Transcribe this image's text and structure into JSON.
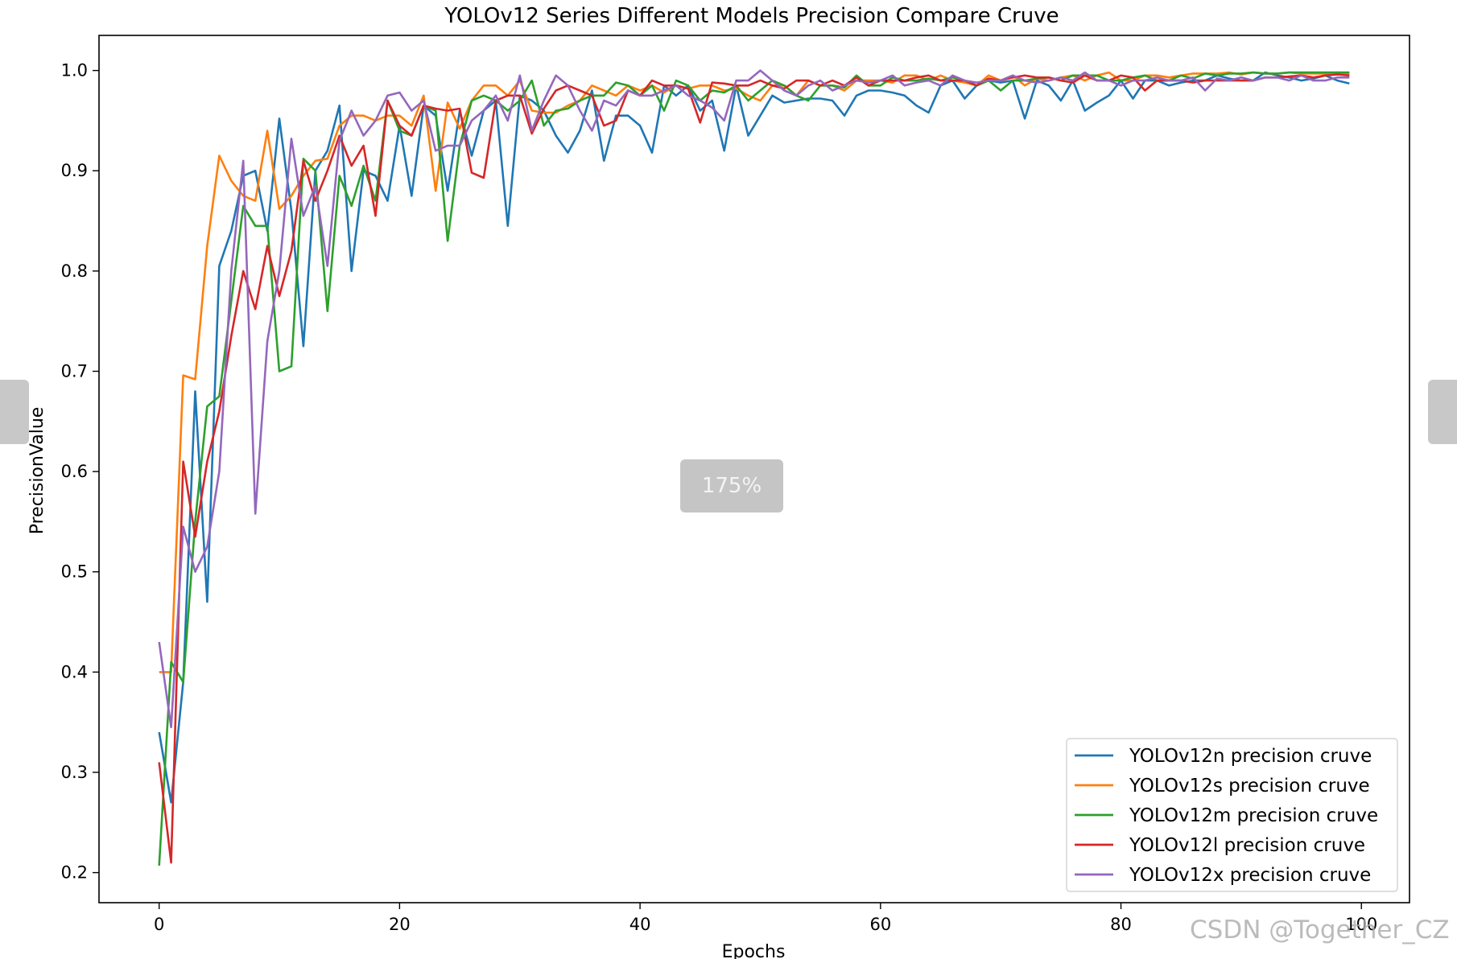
{
  "overlay": {
    "zoom_label": "175%",
    "watermark": "CSDN @Together_CZ"
  },
  "chart_data": {
    "type": "line",
    "title": "YOLOv12 Series Different Models Precision Compare Cruve",
    "xlabel": "Epochs",
    "ylabel": "PrecisionValue",
    "xlim": [
      -5,
      104
    ],
    "ylim": [
      0.17,
      1.035
    ],
    "xticks": [
      0,
      20,
      40,
      60,
      80,
      100
    ],
    "yticks": [
      0.2,
      0.3,
      0.4,
      0.5,
      0.6,
      0.7,
      0.8,
      0.9,
      1.0
    ],
    "grid": false,
    "legend_position": "lower-right",
    "x": [
      0,
      1,
      2,
      3,
      4,
      5,
      6,
      7,
      8,
      9,
      10,
      11,
      12,
      13,
      14,
      15,
      16,
      17,
      18,
      19,
      20,
      21,
      22,
      23,
      24,
      25,
      26,
      27,
      28,
      29,
      30,
      31,
      32,
      33,
      34,
      35,
      36,
      37,
      38,
      39,
      40,
      41,
      42,
      43,
      44,
      45,
      46,
      47,
      48,
      49,
      50,
      51,
      52,
      53,
      54,
      55,
      56,
      57,
      58,
      59,
      60,
      61,
      62,
      63,
      64,
      65,
      66,
      67,
      68,
      69,
      70,
      71,
      72,
      73,
      74,
      75,
      76,
      77,
      78,
      79,
      80,
      81,
      82,
      83,
      84,
      85,
      86,
      87,
      88,
      89,
      90,
      91,
      92,
      93,
      94,
      95,
      96,
      97,
      98,
      99
    ],
    "series": [
      {
        "name": "YOLOv12n precision cruve",
        "color": "#1f77b4",
        "values": [
          0.34,
          0.27,
          0.39,
          0.68,
          0.47,
          0.805,
          0.84,
          0.895,
          0.9,
          0.84,
          0.952,
          0.86,
          0.725,
          0.9,
          0.92,
          0.965,
          0.8,
          0.9,
          0.895,
          0.87,
          0.945,
          0.875,
          0.965,
          0.955,
          0.88,
          0.96,
          0.915,
          0.96,
          0.97,
          0.845,
          0.975,
          0.97,
          0.96,
          0.935,
          0.918,
          0.94,
          0.98,
          0.91,
          0.955,
          0.955,
          0.945,
          0.918,
          0.985,
          0.975,
          0.985,
          0.96,
          0.97,
          0.92,
          0.985,
          0.935,
          0.955,
          0.975,
          0.968,
          0.97,
          0.972,
          0.972,
          0.97,
          0.955,
          0.975,
          0.98,
          0.98,
          0.978,
          0.975,
          0.965,
          0.958,
          0.985,
          0.99,
          0.972,
          0.985,
          0.99,
          0.988,
          0.99,
          0.952,
          0.99,
          0.985,
          0.97,
          0.99,
          0.96,
          0.968,
          0.975,
          0.99,
          0.972,
          0.99,
          0.99,
          0.985,
          0.988,
          0.99,
          0.99,
          0.995,
          0.992,
          0.99,
          0.99,
          0.998,
          0.995,
          0.993,
          0.99,
          0.992,
          0.995,
          0.99,
          0.987
        ]
      },
      {
        "name": "YOLOv12s precision cruve",
        "color": "#ff7f0e",
        "values": [
          0.4,
          0.4,
          0.696,
          0.692,
          0.825,
          0.915,
          0.89,
          0.875,
          0.87,
          0.94,
          0.862,
          0.875,
          0.895,
          0.91,
          0.912,
          0.945,
          0.955,
          0.955,
          0.95,
          0.955,
          0.955,
          0.945,
          0.975,
          0.88,
          0.968,
          0.942,
          0.97,
          0.985,
          0.985,
          0.975,
          0.99,
          0.96,
          0.958,
          0.958,
          0.965,
          0.97,
          0.985,
          0.98,
          0.975,
          0.985,
          0.98,
          0.985,
          0.978,
          0.985,
          0.982,
          0.985,
          0.985,
          0.98,
          0.982,
          0.975,
          0.97,
          0.985,
          0.985,
          0.975,
          0.99,
          0.985,
          0.985,
          0.98,
          0.99,
          0.99,
          0.99,
          0.988,
          0.995,
          0.995,
          0.99,
          0.995,
          0.99,
          0.988,
          0.985,
          0.995,
          0.99,
          0.995,
          0.985,
          0.992,
          0.99,
          0.993,
          0.995,
          0.99,
          0.995,
          0.998,
          0.99,
          0.99,
          0.995,
          0.995,
          0.993,
          0.995,
          0.997,
          0.997,
          0.997,
          0.998,
          0.996,
          0.998,
          0.997,
          0.997,
          0.998,
          0.997,
          0.997,
          0.997,
          0.998,
          0.997
        ]
      },
      {
        "name": "YOLOv12m precision cruve",
        "color": "#2ca02c",
        "values": [
          0.207,
          0.41,
          0.39,
          0.55,
          0.665,
          0.675,
          0.77,
          0.865,
          0.845,
          0.845,
          0.7,
          0.705,
          0.912,
          0.9,
          0.76,
          0.895,
          0.865,
          0.905,
          0.87,
          0.97,
          0.94,
          0.935,
          0.965,
          0.96,
          0.83,
          0.925,
          0.97,
          0.975,
          0.97,
          0.96,
          0.97,
          0.99,
          0.945,
          0.96,
          0.962,
          0.97,
          0.975,
          0.975,
          0.988,
          0.985,
          0.975,
          0.985,
          0.96,
          0.99,
          0.985,
          0.97,
          0.98,
          0.978,
          0.985,
          0.97,
          0.98,
          0.99,
          0.985,
          0.975,
          0.97,
          0.985,
          0.985,
          0.983,
          0.995,
          0.985,
          0.985,
          0.993,
          0.99,
          0.99,
          0.992,
          0.99,
          0.993,
          0.99,
          0.985,
          0.99,
          0.98,
          0.99,
          0.99,
          0.992,
          0.993,
          0.99,
          0.995,
          0.995,
          0.995,
          0.99,
          0.99,
          0.993,
          0.995,
          0.99,
          0.99,
          0.995,
          0.992,
          0.997,
          0.995,
          0.997,
          0.997,
          0.998,
          0.997,
          0.997,
          0.998,
          0.998,
          0.998,
          0.998,
          0.998,
          0.998
        ]
      },
      {
        "name": "YOLOv12l precision cruve",
        "color": "#d62728",
        "values": [
          0.31,
          0.21,
          0.61,
          0.535,
          0.61,
          0.66,
          0.735,
          0.8,
          0.762,
          0.825,
          0.775,
          0.82,
          0.91,
          0.87,
          0.9,
          0.935,
          0.905,
          0.925,
          0.855,
          0.97,
          0.945,
          0.935,
          0.965,
          0.962,
          0.96,
          0.962,
          0.898,
          0.893,
          0.97,
          0.975,
          0.975,
          0.937,
          0.962,
          0.98,
          0.985,
          0.98,
          0.975,
          0.945,
          0.95,
          0.98,
          0.975,
          0.99,
          0.985,
          0.985,
          0.982,
          0.948,
          0.988,
          0.987,
          0.985,
          0.985,
          0.99,
          0.985,
          0.982,
          0.99,
          0.99,
          0.985,
          0.99,
          0.985,
          0.993,
          0.985,
          0.99,
          0.99,
          0.99,
          0.993,
          0.995,
          0.99,
          0.99,
          0.99,
          0.985,
          0.992,
          0.99,
          0.993,
          0.995,
          0.993,
          0.993,
          0.99,
          0.988,
          0.995,
          0.99,
          0.99,
          0.995,
          0.993,
          0.98,
          0.99,
          0.99,
          0.99,
          0.988,
          0.99,
          0.99,
          0.99,
          0.99,
          0.99,
          0.993,
          0.993,
          0.994,
          0.995,
          0.993,
          0.995,
          0.996,
          0.995
        ]
      },
      {
        "name": "YOLOv12x precision cruve",
        "color": "#9467bd",
        "values": [
          0.43,
          0.345,
          0.545,
          0.5,
          0.525,
          0.6,
          0.8,
          0.91,
          0.558,
          0.73,
          0.8,
          0.932,
          0.855,
          0.885,
          0.805,
          0.93,
          0.96,
          0.935,
          0.95,
          0.975,
          0.978,
          0.96,
          0.97,
          0.92,
          0.925,
          0.925,
          0.95,
          0.96,
          0.975,
          0.95,
          0.995,
          0.94,
          0.97,
          0.995,
          0.985,
          0.96,
          0.94,
          0.97,
          0.965,
          0.98,
          0.975,
          0.975,
          0.98,
          0.985,
          0.975,
          0.97,
          0.963,
          0.95,
          0.99,
          0.99,
          1.0,
          0.99,
          0.98,
          0.975,
          0.985,
          0.99,
          0.98,
          0.985,
          0.99,
          0.988,
          0.99,
          0.995,
          0.985,
          0.988,
          0.99,
          0.985,
          0.995,
          0.99,
          0.988,
          0.99,
          0.99,
          0.995,
          0.99,
          0.988,
          0.99,
          0.993,
          0.99,
          0.998,
          0.99,
          0.99,
          0.985,
          0.99,
          0.99,
          0.993,
          0.99,
          0.99,
          0.993,
          0.98,
          0.992,
          0.99,
          0.993,
          0.99,
          0.993,
          0.993,
          0.99,
          0.995,
          0.99,
          0.99,
          0.993,
          0.993
        ]
      }
    ]
  }
}
